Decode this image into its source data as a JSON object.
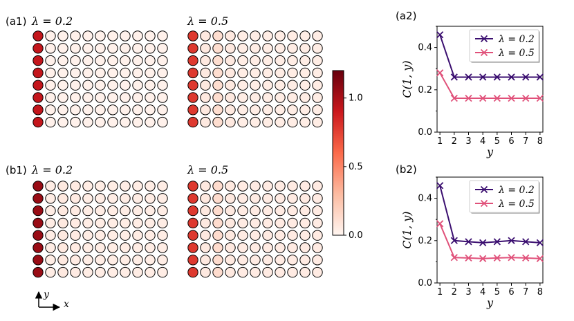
{
  "colorbar": {
    "ticks": [
      0.0,
      0.5,
      1.0
    ],
    "tick_labels": [
      "0.0",
      "0.5",
      "1.0"
    ],
    "max": 1.2,
    "colors": [
      "#fff5f0",
      "#fcbba1",
      "#fb6a4a",
      "#cb181d",
      "#67000d"
    ]
  },
  "grids": [
    {
      "label": "(a1)",
      "lambda_text": "λ = 0.2",
      "rows": 8,
      "cols": 11,
      "column_values": [
        0.92,
        0.02,
        0.02,
        0.02,
        0.02,
        0.02,
        0.02,
        0.02,
        0.02,
        0.02,
        0.02
      ]
    },
    {
      "label": "",
      "lambda_text": "λ = 0.5",
      "rows": 8,
      "cols": 11,
      "column_values": [
        0.78,
        0.06,
        0.12,
        0.06,
        0.04,
        0.04,
        0.04,
        0.04,
        0.04,
        0.04,
        0.04
      ]
    },
    {
      "label": "(b1)",
      "lambda_text": "λ = 0.2",
      "rows": 8,
      "cols": 11,
      "column_values": [
        1.05,
        0.04,
        0.06,
        0.05,
        0.04,
        0.04,
        0.04,
        0.04,
        0.04,
        0.04,
        0.04
      ]
    },
    {
      "label": "",
      "lambda_text": "λ = 0.5",
      "rows": 8,
      "cols": 11,
      "column_values": [
        0.78,
        0.06,
        0.13,
        0.06,
        0.05,
        0.05,
        0.05,
        0.05,
        0.05,
        0.05,
        0.05
      ]
    }
  ],
  "axes_glyph": {
    "y": "y",
    "x": "x"
  },
  "chart_data": [
    {
      "type": "line",
      "panel_label": "(a2)",
      "xlabel": "y",
      "ylabel": "C(1, y)",
      "x": [
        1,
        2,
        3,
        4,
        5,
        6,
        7,
        8
      ],
      "xlim": [
        0.8,
        8.2
      ],
      "ylim": [
        0,
        0.5
      ],
      "yticks": [
        0.0,
        0.2,
        0.4
      ],
      "ytick_labels": [
        "0.0",
        "0.2",
        "0.4"
      ],
      "legend_position": "top-right",
      "series": [
        {
          "name": "λ = 0.2",
          "color": "#3b0f70",
          "values": [
            0.46,
            0.26,
            0.26,
            0.26,
            0.26,
            0.26,
            0.26,
            0.26
          ]
        },
        {
          "name": "λ = 0.5",
          "color": "#e0517a",
          "values": [
            0.28,
            0.16,
            0.16,
            0.16,
            0.16,
            0.16,
            0.16,
            0.16
          ]
        }
      ]
    },
    {
      "type": "line",
      "panel_label": "(b2)",
      "xlabel": "y",
      "ylabel": "C(1, y)",
      "x": [
        1,
        2,
        3,
        4,
        5,
        6,
        7,
        8
      ],
      "xlim": [
        0.8,
        8.2
      ],
      "ylim": [
        0,
        0.5
      ],
      "yticks": [
        0.0,
        0.2,
        0.4
      ],
      "ytick_labels": [
        "0.0",
        "0.2",
        "0.4"
      ],
      "legend_position": "top-right",
      "series": [
        {
          "name": "λ = 0.2",
          "color": "#3b0f70",
          "values": [
            0.46,
            0.2,
            0.195,
            0.19,
            0.195,
            0.2,
            0.195,
            0.19
          ]
        },
        {
          "name": "λ = 0.5",
          "color": "#e0517a",
          "values": [
            0.28,
            0.12,
            0.118,
            0.115,
            0.118,
            0.12,
            0.118,
            0.115
          ]
        }
      ]
    }
  ]
}
